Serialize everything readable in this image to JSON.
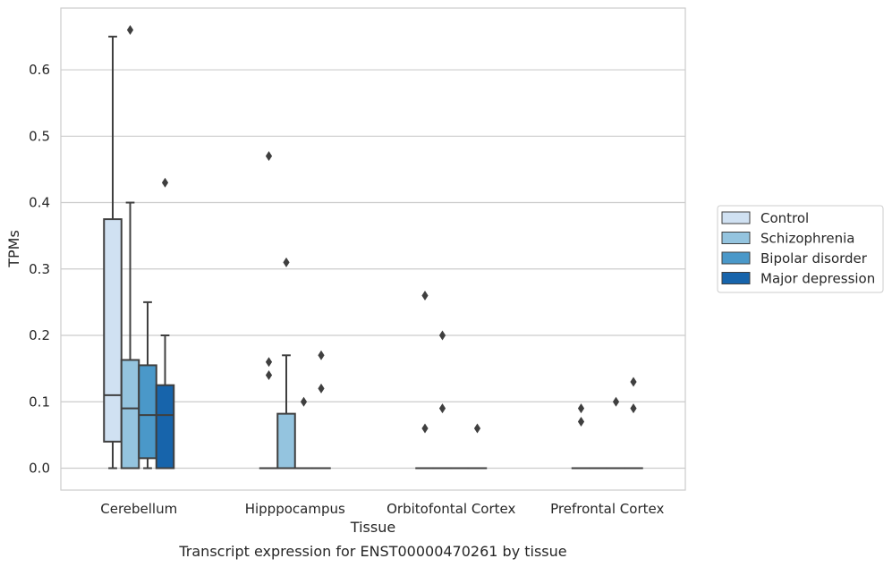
{
  "chart_data": {
    "type": "box",
    "title": "Transcript expression for ENST00000470261 by tissue",
    "xlabel": "Tissue",
    "ylabel": "TPMs",
    "ylim": [
      -0.033,
      0.693
    ],
    "yticks": [
      0.0,
      0.1,
      0.2,
      0.3,
      0.4,
      0.5,
      0.6
    ],
    "ytick_labels": [
      "0.0",
      "0.1",
      "0.2",
      "0.3",
      "0.4",
      "0.5",
      "0.6"
    ],
    "grid": true,
    "legend_position": "right",
    "categories": [
      "Cerebellum",
      "Hipppocampus",
      "Orbitofontal Cortex",
      "Prefrontal Cortex"
    ],
    "series": [
      {
        "name": "Control",
        "color": "#d0e1f2",
        "boxes": [
          {
            "q1": 0.04,
            "median": 0.11,
            "q3": 0.375,
            "whisker_low": 0.0,
            "whisker_high": 0.65,
            "outliers": []
          },
          {
            "q1": 0.0,
            "median": 0.0,
            "q3": 0.0,
            "whisker_low": 0.0,
            "whisker_high": 0.0,
            "outliers": [
              0.47,
              0.16,
              0.14
            ]
          },
          {
            "q1": 0.0,
            "median": 0.0,
            "q3": 0.0,
            "whisker_low": 0.0,
            "whisker_high": 0.0,
            "outliers": [
              0.26,
              0.06
            ]
          },
          {
            "q1": 0.0,
            "median": 0.0,
            "q3": 0.0,
            "whisker_low": 0.0,
            "whisker_high": 0.0,
            "outliers": [
              0.09,
              0.07
            ]
          }
        ]
      },
      {
        "name": "Schizophrenia",
        "color": "#94c4df",
        "boxes": [
          {
            "q1": 0.0,
            "median": 0.09,
            "q3": 0.163,
            "whisker_low": 0.0,
            "whisker_high": 0.4,
            "outliers": [
              0.66
            ]
          },
          {
            "q1": 0.0,
            "median": 0.0,
            "q3": 0.082,
            "whisker_low": 0.0,
            "whisker_high": 0.17,
            "outliers": [
              0.31
            ]
          },
          {
            "q1": 0.0,
            "median": 0.0,
            "q3": 0.0,
            "whisker_low": 0.0,
            "whisker_high": 0.0,
            "outliers": [
              0.2,
              0.09
            ]
          },
          {
            "q1": 0.0,
            "median": 0.0,
            "q3": 0.0,
            "whisker_low": 0.0,
            "whisker_high": 0.0,
            "outliers": []
          }
        ]
      },
      {
        "name": "Bipolar disorder",
        "color": "#4a98c9",
        "boxes": [
          {
            "q1": 0.015,
            "median": 0.08,
            "q3": 0.155,
            "whisker_low": 0.0,
            "whisker_high": 0.25,
            "outliers": []
          },
          {
            "q1": 0.0,
            "median": 0.0,
            "q3": 0.0,
            "whisker_low": 0.0,
            "whisker_high": 0.0,
            "outliers": [
              0.1
            ]
          },
          {
            "q1": 0.0,
            "median": 0.0,
            "q3": 0.0,
            "whisker_low": 0.0,
            "whisker_high": 0.0,
            "outliers": []
          },
          {
            "q1": 0.0,
            "median": 0.0,
            "q3": 0.0,
            "whisker_low": 0.0,
            "whisker_high": 0.0,
            "outliers": [
              0.1
            ]
          }
        ]
      },
      {
        "name": "Major depression",
        "color": "#1764ab",
        "boxes": [
          {
            "q1": 0.0,
            "median": 0.08,
            "q3": 0.125,
            "whisker_low": 0.0,
            "whisker_high": 0.2,
            "outliers": [
              0.43
            ]
          },
          {
            "q1": 0.0,
            "median": 0.0,
            "q3": 0.0,
            "whisker_low": 0.0,
            "whisker_high": 0.0,
            "outliers": [
              0.17,
              0.12
            ]
          },
          {
            "q1": 0.0,
            "median": 0.0,
            "q3": 0.0,
            "whisker_low": 0.0,
            "whisker_high": 0.0,
            "outliers": [
              0.06
            ]
          },
          {
            "q1": 0.0,
            "median": 0.0,
            "q3": 0.0,
            "whisker_low": 0.0,
            "whisker_high": 0.0,
            "outliers": [
              0.13,
              0.09
            ]
          }
        ]
      }
    ]
  }
}
